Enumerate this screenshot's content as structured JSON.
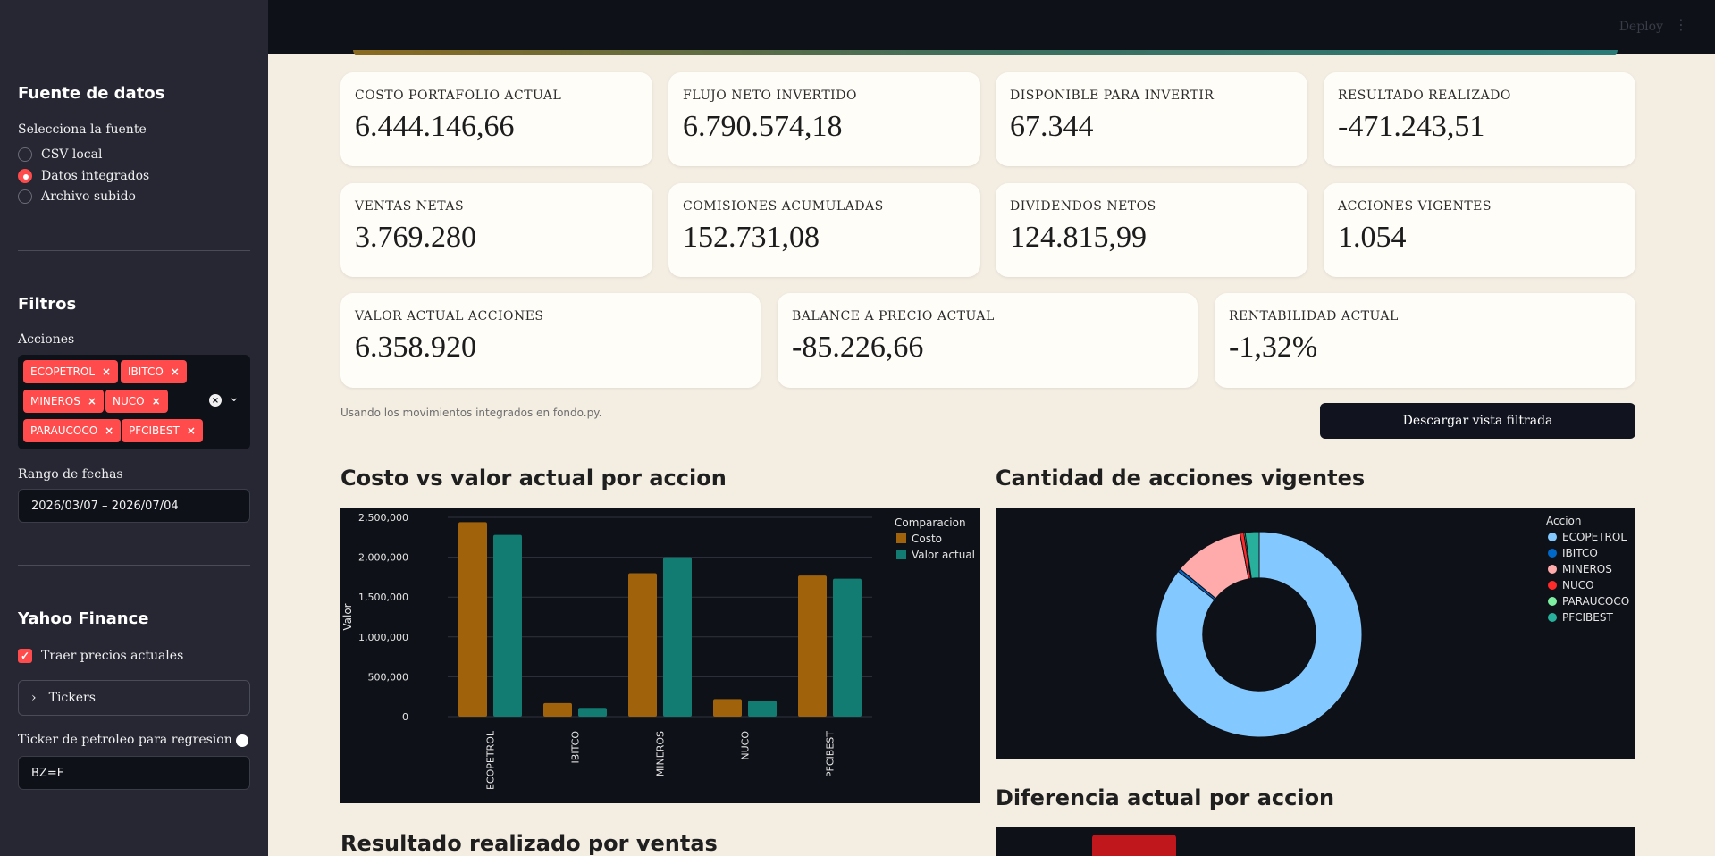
{
  "sidebar": {
    "data_source": {
      "title": "Fuente de datos",
      "select_label": "Selecciona la fuente",
      "options": [
        "CSV local",
        "Datos integrados",
        "Archivo subido"
      ],
      "selected": "Datos integrados"
    },
    "filters": {
      "title": "Filtros",
      "stocks_label": "Acciones",
      "chips": [
        "ECOPETROL",
        "IBITCO",
        "MINEROS",
        "NUCO",
        "PARAUCOCO",
        "PFCIBEST"
      ],
      "chip_remove": "×",
      "clear_icon": "×",
      "chevron": "⌄",
      "date_label": "Rango de fechas",
      "date_value": "2026/03/07 – 2026/07/04"
    },
    "yahoo": {
      "title": "Yahoo Finance",
      "fetch_label": "Traer precios actuales",
      "fetch_check": "✓",
      "tickers_label": "Tickers",
      "tickers_chevron": "›",
      "oil_label": "Ticker de petroleo para regresion",
      "oil_value": "BZ=F"
    }
  },
  "header": {
    "deploy": "Deploy",
    "menu": "⋮"
  },
  "metrics": [
    {
      "label": "COSTO PORTAFOLIO ACTUAL",
      "value": "6.444.146,66"
    },
    {
      "label": "FLUJO NETO INVERTIDO",
      "value": "6.790.574,18"
    },
    {
      "label": "DISPONIBLE PARA INVERTIR",
      "value": "67.344"
    },
    {
      "label": "RESULTADO REALIZADO",
      "value": "-471.243,51"
    },
    {
      "label": "VENTAS NETAS",
      "value": "3.769.280"
    },
    {
      "label": "COMISIONES ACUMULADAS",
      "value": "152.731,08"
    },
    {
      "label": "DIVIDENDOS NETOS",
      "value": "124.815,99"
    },
    {
      "label": "ACCIONES VIGENTES",
      "value": "1.054"
    },
    {
      "label": "VALOR ACTUAL ACCIONES",
      "value": "6.358.920"
    },
    {
      "label": "BALANCE A PRECIO ACTUAL",
      "value": "-85.226,66"
    },
    {
      "label": "RENTABILIDAD ACTUAL",
      "value": "-1,32%"
    }
  ],
  "caption": "Usando los movimientos integrados en fondo.py.",
  "download_label": "Descargar vista filtrada",
  "sections": {
    "bar_title": "Costo vs valor actual por accion",
    "donut_title": "Cantidad de acciones vigentes",
    "diff_title": "Diferencia actual por accion",
    "realized_title": "Resultado realizado por ventas"
  },
  "colors": {
    "accent_red": "#ff4b4b",
    "costo": "#a0620a",
    "valor_actual": "#127b72",
    "sidebar_bg": "#262733",
    "chart_bg": "#0e1117"
  },
  "chart_data": [
    {
      "type": "bar",
      "categories": [
        "ECOPETROL",
        "IBITCO",
        "MINEROS",
        "NUCO",
        "PFCIBEST"
      ],
      "series": [
        {
          "name": "Costo",
          "values": [
            2440000,
            170000,
            1800000,
            220000,
            1770000
          ],
          "color": "#a0620a"
        },
        {
          "name": "Valor actual",
          "values": [
            2280000,
            110000,
            2000000,
            200000,
            1730000
          ],
          "color": "#127b72"
        }
      ],
      "ylabel": "Valor",
      "legend_title": "Comparacion",
      "ylim": [
        0,
        2500000
      ],
      "yticks": [
        0,
        500000,
        1000000,
        1500000,
        2000000,
        2500000
      ],
      "ytick_labels": [
        "0",
        "500,000",
        "1,000,000",
        "1,500,000",
        "2,000,000",
        "2,500,000"
      ],
      "grid": true,
      "legend_position": "top-right"
    },
    {
      "type": "pie",
      "hole": 0.55,
      "legend_title": "Accion",
      "labels": [
        "ECOPETROL",
        "IBITCO",
        "MINEROS",
        "NUCO",
        "PARAUCOCO",
        "PFCIBEST"
      ],
      "values": [
        85.5,
        0.5,
        11.0,
        0.6,
        0.2,
        2.2
      ],
      "colors": [
        "#83c9ff",
        "#0068c9",
        "#ffabab",
        "#ff2b2b",
        "#7defa1",
        "#29b09d"
      ],
      "legend_position": "top-right"
    }
  ]
}
